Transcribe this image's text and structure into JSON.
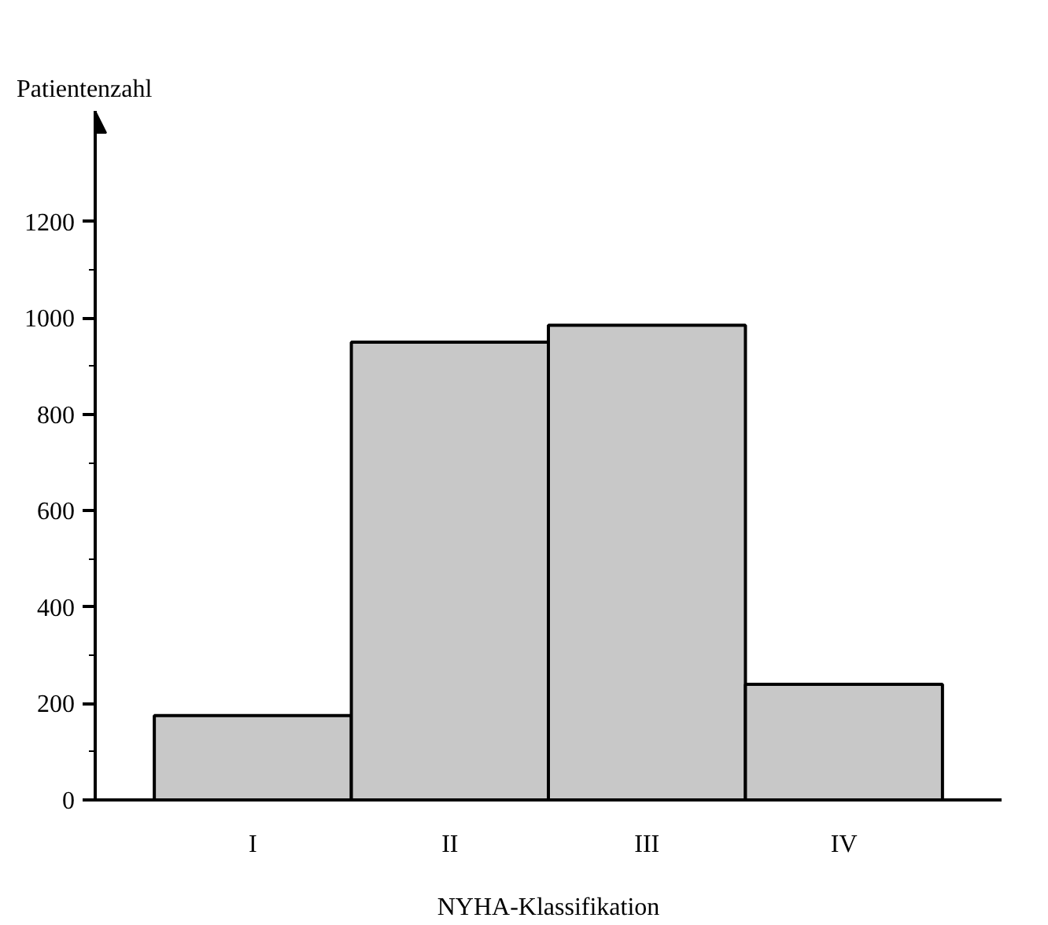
{
  "chart_data": {
    "type": "bar",
    "categories": [
      "I",
      "II",
      "III",
      "IV"
    ],
    "values": [
      175,
      950,
      985,
      240
    ],
    "color": "#c8c8c8",
    "ylabel": "Patientenzahl",
    "xlabel": "NYHA-Klassifikation",
    "ylim": [
      0,
      1430
    ],
    "yticks": [
      0,
      200,
      400,
      600,
      800,
      1000,
      1200
    ],
    "grid": false
  }
}
